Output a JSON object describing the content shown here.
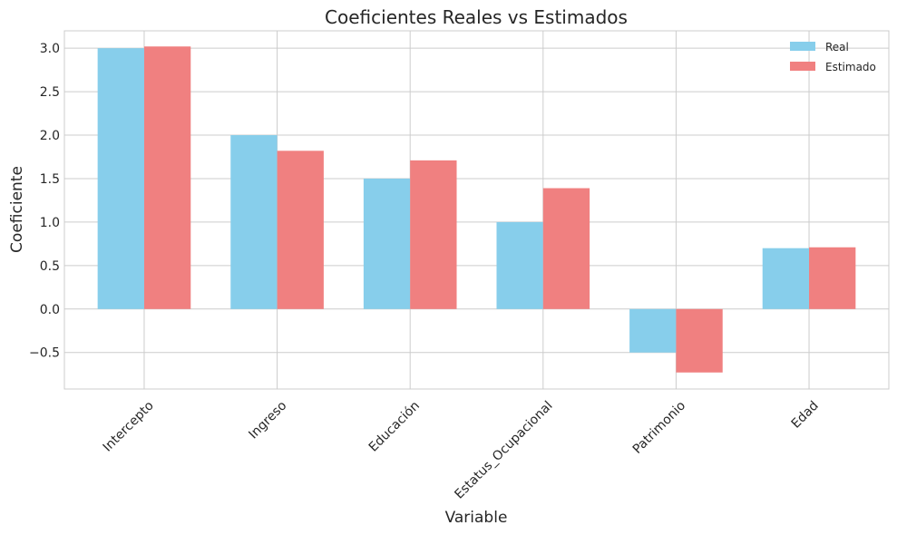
{
  "chart_data": {
    "type": "bar",
    "title": "Coeficientes Reales vs Estimados",
    "xlabel": "Variable",
    "ylabel": "Coeficiente",
    "categories": [
      "Intercepto",
      "Ingreso",
      "Educación",
      "Estatus_Ocupacional",
      "Patrimonio",
      "Edad"
    ],
    "series": [
      {
        "name": "Real",
        "color": "#87ceeb",
        "values": [
          3.0,
          2.0,
          1.5,
          1.0,
          -0.5,
          0.7
        ]
      },
      {
        "name": "Estimado",
        "color": "#f08080",
        "values": [
          3.02,
          1.82,
          1.71,
          1.39,
          -0.73,
          0.71
        ]
      }
    ],
    "ylim": [
      -0.92,
      3.2
    ],
    "yticks": [
      -0.5,
      0.0,
      0.5,
      1.0,
      1.5,
      2.0,
      2.5,
      3.0
    ],
    "ytick_labels": [
      "−0.5",
      "0.0",
      "0.5",
      "1.0",
      "1.5",
      "2.0",
      "2.5",
      "3.0"
    ],
    "grid": true,
    "legend_position": "top-right"
  }
}
